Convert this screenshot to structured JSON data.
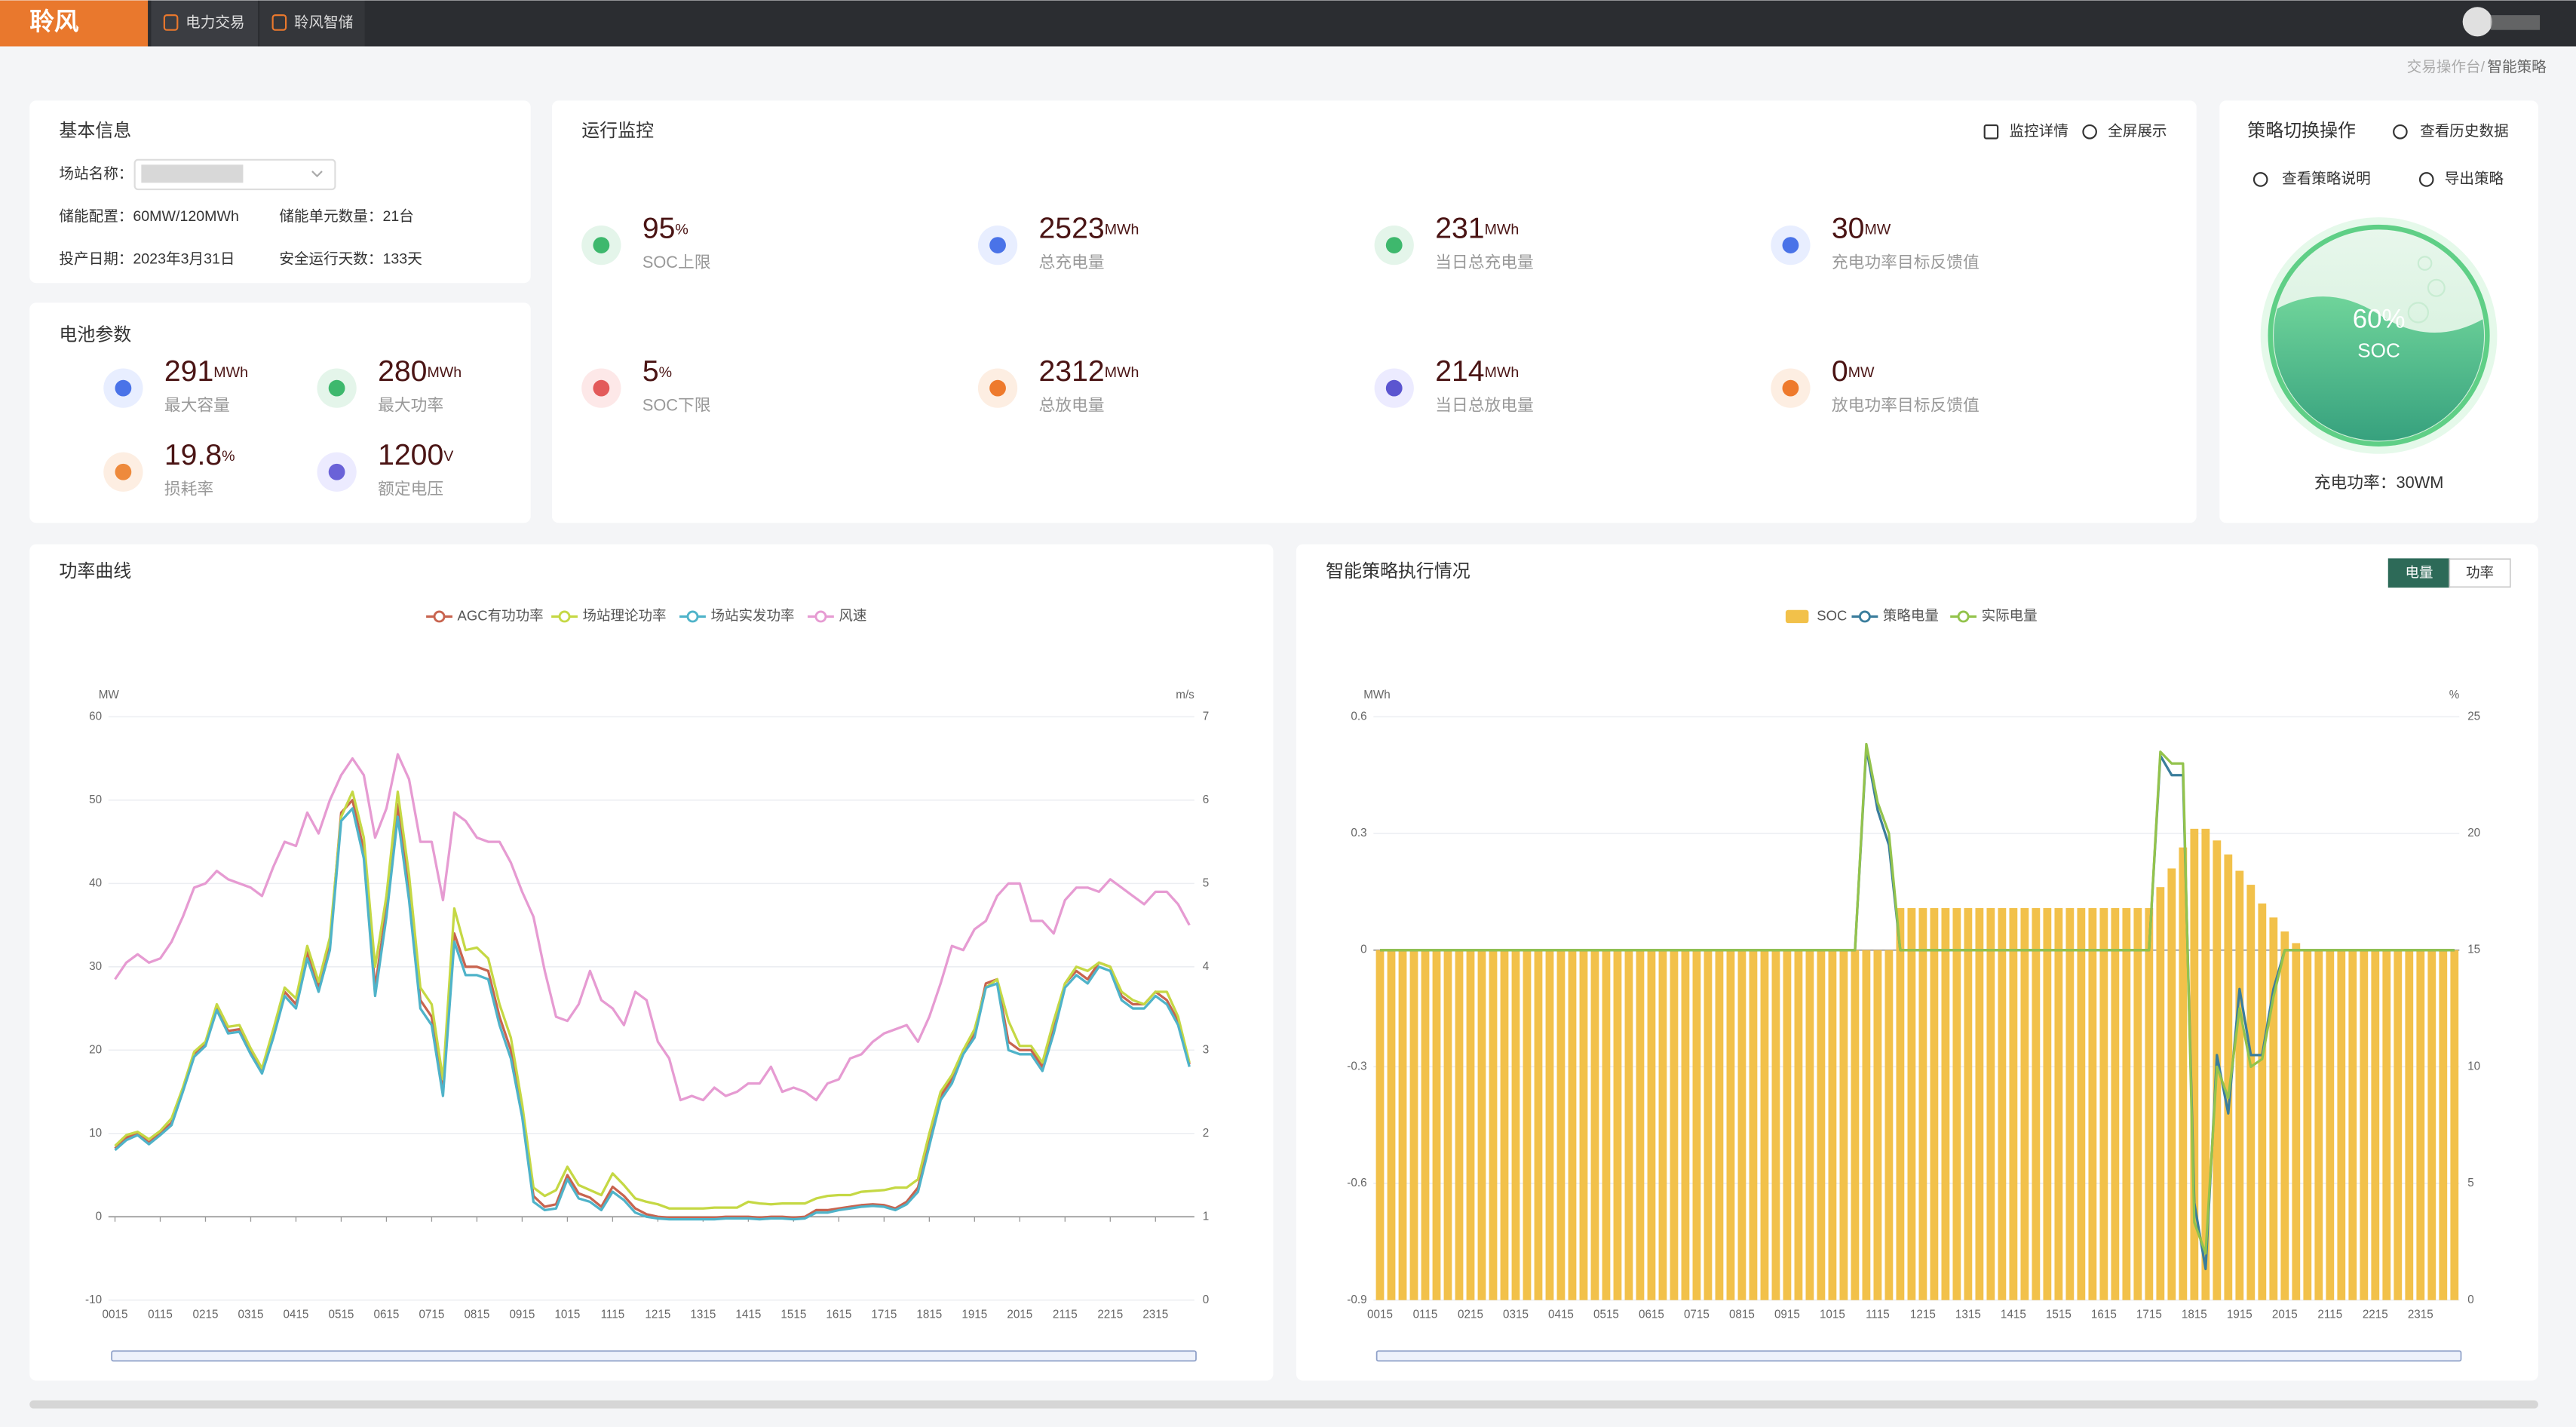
{
  "nav": {
    "logo": "聆风",
    "tabs": [
      "电力交易",
      "聆风智储"
    ]
  },
  "breadcrumb": [
    "交易操作台",
    "智能策略"
  ],
  "basic_info": {
    "title": "基本信息",
    "fields": [
      {
        "label": "场站名称："
      },
      {
        "label": "储能配置：",
        "value": "60MW/120MWh"
      },
      {
        "label": "储能单元数量：",
        "value": "21台"
      },
      {
        "label": "投产日期：",
        "value": "2023年3月31日"
      },
      {
        "label": "安全运行天数：",
        "value": "133天"
      }
    ]
  },
  "battery": {
    "title": "电池参数",
    "items": [
      {
        "value": 291,
        "unit": "MWh",
        "label": "最大容量"
      },
      {
        "value": 280,
        "unit": "MWh",
        "label": "最大功率"
      },
      {
        "value": 19.8,
        "unit": "%",
        "label": "损耗率"
      },
      {
        "value": 1200,
        "unit": "V",
        "label": "额定电压"
      }
    ]
  },
  "monitor": {
    "title": "运行监控",
    "actions": [
      "监控详情",
      "全屏展示"
    ],
    "items": [
      {
        "value": 95,
        "unit": "%",
        "label": "SOC上限"
      },
      {
        "value": 2523,
        "unit": "MWh",
        "label": "总充电量"
      },
      {
        "value": 231,
        "unit": "MWh",
        "label": "当日总充电量"
      },
      {
        "value": 30,
        "unit": "MW",
        "label": "充电功率目标反馈值"
      },
      {
        "value": 5,
        "unit": "%",
        "label": "SOC下限"
      },
      {
        "value": 2312,
        "unit": "MWh",
        "label": "总放电量"
      },
      {
        "value": 214,
        "unit": "MWh",
        "label": "当日总放电量"
      },
      {
        "value": 0,
        "unit": "MW",
        "label": "放电功率目标反馈值"
      }
    ]
  },
  "strategy": {
    "title": "策略切换操作",
    "actions": [
      "查看历史数据",
      "查看策略说明",
      "导出策略"
    ],
    "soc": 60,
    "soc_unit": "%",
    "soc_label": "SOC",
    "power": "充电功率：30WM"
  },
  "chart_data": [
    {
      "type": "line",
      "title": "功率曲线",
      "y_unit": "MW",
      "y2_unit": "m/s",
      "categories": [
        "0015",
        null,
        null,
        null,
        "0115",
        null,
        null,
        null,
        "0215",
        null,
        null,
        null,
        "0315",
        null,
        null,
        null,
        "0415",
        null,
        null,
        null,
        "0515",
        null,
        null,
        null,
        "0615",
        null,
        null,
        null,
        "0715",
        null,
        null,
        null,
        "0815",
        null,
        null,
        null,
        "0915",
        null,
        null,
        null,
        "1015",
        null,
        null,
        null,
        "1115",
        null,
        null,
        null,
        "1215",
        null,
        null,
        null,
        "1315",
        null,
        null,
        null,
        "1415",
        null,
        null,
        null,
        "1515",
        null,
        null,
        null,
        "1615",
        null,
        null,
        null,
        "1715",
        null,
        null,
        null,
        "1815",
        null,
        null,
        null,
        "1915",
        null,
        null,
        null,
        "2015",
        null,
        null,
        null,
        "2115",
        null,
        null,
        null,
        "2215",
        null,
        null,
        null,
        "2315",
        null,
        null,
        null
      ],
      "ylim": [
        -10,
        60
      ],
      "yticks": [
        -10,
        0,
        10,
        20,
        30,
        40,
        50,
        60
      ],
      "y2lim": [
        0,
        7
      ],
      "y2ticks": [
        0,
        1,
        2,
        3,
        4,
        5,
        6,
        7
      ],
      "grid": true,
      "series": [
        {
          "name": "AGC有功功率",
          "color": "#c8644f",
          "values": [
            8.2,
            9.5,
            10,
            8.9,
            10,
            11.3,
            15.2,
            19.5,
            20.8,
            25,
            22.3,
            22.5,
            19.8,
            17.5,
            22,
            27,
            25.5,
            31.8,
            27.5,
            32.8,
            48.5,
            50,
            44,
            27.5,
            37,
            49.5,
            39,
            26,
            24,
            15,
            34,
            30,
            30,
            29.5,
            24,
            20,
            12.5,
            2.5,
            1.2,
            1.5,
            5,
            2.8,
            2.3,
            1.2,
            3.6,
            2.5,
            1,
            0.3,
            0,
            -0.1,
            -0.1,
            -0.1,
            -0.1,
            -0.1,
            0,
            0,
            0,
            -0.1,
            0,
            0,
            -0.1,
            0,
            0.8,
            0.8,
            1,
            1.2,
            1.4,
            1.5,
            1.4,
            1,
            1.8,
            3.5,
            9,
            14.5,
            16.5,
            20,
            22,
            28,
            28.5,
            21,
            20,
            20,
            18,
            22.5,
            28,
            29.5,
            28.5,
            30.5,
            30,
            26.5,
            25.5,
            25.5,
            27,
            26,
            23.5,
            18.3
          ]
        },
        {
          "name": "场站理论功率",
          "color": "#c5d844",
          "values": [
            8.5,
            9.8,
            10.2,
            9.3,
            10.3,
            11.8,
            15.5,
            19.8,
            21,
            25.5,
            22.8,
            23,
            20.2,
            17.8,
            22.5,
            27.5,
            26.2,
            32.5,
            28.2,
            33.5,
            48,
            51,
            45.5,
            30,
            38.5,
            51,
            41,
            27.5,
            25.5,
            16.5,
            37,
            32,
            32.3,
            31,
            25.5,
            21.5,
            13.5,
            3.5,
            2.5,
            3.2,
            6,
            3.8,
            3.2,
            2.6,
            5.2,
            3.8,
            2.2,
            1.8,
            1.5,
            1,
            1,
            1,
            1,
            1.1,
            1.1,
            1.1,
            1.8,
            1.6,
            1.5,
            1.6,
            1.6,
            1.6,
            2.2,
            2.5,
            2.6,
            2.6,
            3,
            3.1,
            3.2,
            3.5,
            3.5,
            4.5,
            10,
            15,
            17,
            20,
            22.5,
            27.5,
            28.5,
            23.5,
            20.5,
            20.5,
            18.5,
            23.5,
            28,
            30,
            29.5,
            30.5,
            30,
            27,
            26,
            25.5,
            27,
            27,
            24,
            18.5
          ]
        },
        {
          "name": "场站实发功率",
          "color": "#4fb3c9",
          "values": [
            8,
            9.2,
            9.8,
            8.7,
            9.8,
            11,
            15,
            19.2,
            20.5,
            24.8,
            22,
            22.2,
            19.5,
            17.2,
            21.5,
            26.5,
            25,
            31,
            27,
            32,
            47.5,
            49,
            43,
            26.5,
            36,
            48,
            38,
            25,
            23,
            14.5,
            33,
            29,
            29,
            28.5,
            23,
            19,
            12,
            1.8,
            0.8,
            1,
            4.5,
            2.2,
            1.8,
            0.8,
            3,
            2,
            0.5,
            0,
            -0.2,
            -0.3,
            -0.3,
            -0.3,
            -0.3,
            -0.3,
            -0.2,
            -0.2,
            -0.2,
            -0.3,
            -0.2,
            -0.2,
            -0.3,
            -0.2,
            0.5,
            0.5,
            0.8,
            1,
            1.2,
            1.3,
            1.2,
            0.8,
            1.5,
            3,
            8.5,
            14,
            16,
            19.5,
            21.5,
            27.5,
            28,
            20,
            19.5,
            19.5,
            17.5,
            22,
            27.5,
            29,
            28,
            30,
            29.5,
            26,
            25,
            25,
            26.5,
            25.5,
            23,
            18
          ]
        },
        {
          "name": "风速",
          "color": "#e69bd2",
          "axis": "y2",
          "values": [
            3.85,
            4.05,
            4.15,
            4.05,
            4.1,
            4.3,
            4.6,
            4.95,
            5.0,
            5.15,
            5.05,
            5.0,
            4.95,
            4.85,
            5.2,
            5.5,
            5.45,
            5.85,
            5.6,
            6.0,
            6.3,
            6.5,
            6.3,
            5.55,
            5.9,
            6.55,
            6.25,
            5.5,
            5.5,
            4.8,
            5.85,
            5.75,
            5.55,
            5.5,
            5.5,
            5.25,
            4.9,
            4.6,
            3.95,
            3.4,
            3.35,
            3.55,
            3.95,
            3.6,
            3.5,
            3.3,
            3.7,
            3.6,
            3.1,
            2.9,
            2.4,
            2.45,
            2.4,
            2.55,
            2.45,
            2.5,
            2.6,
            2.6,
            2.8,
            2.5,
            2.55,
            2.5,
            2.4,
            2.6,
            2.65,
            2.9,
            2.95,
            3.1,
            3.2,
            3.25,
            3.3,
            3.1,
            3.4,
            3.8,
            4.25,
            4.2,
            4.45,
            4.55,
            4.85,
            5.0,
            5.0,
            4.55,
            4.55,
            4.4,
            4.8,
            4.95,
            4.95,
            4.9,
            5.05,
            4.95,
            4.85,
            4.75,
            4.9,
            4.9,
            4.75,
            4.5
          ]
        }
      ]
    },
    {
      "type": "bar",
      "title": "智能策略执行情况",
      "buttons": [
        "电量",
        "功率"
      ],
      "y_unit": "MWh",
      "y2_unit": "%",
      "categories": [
        "0015",
        null,
        null,
        null,
        "0115",
        null,
        null,
        null,
        "0215",
        null,
        null,
        null,
        "0315",
        null,
        null,
        null,
        "0415",
        null,
        null,
        null,
        "0515",
        null,
        null,
        null,
        "0615",
        null,
        null,
        null,
        "0715",
        null,
        null,
        null,
        "0815",
        null,
        null,
        null,
        "0915",
        null,
        null,
        null,
        "1015",
        null,
        null,
        null,
        "1115",
        null,
        null,
        null,
        "1215",
        null,
        null,
        null,
        "1315",
        null,
        null,
        null,
        "1415",
        null,
        null,
        null,
        "1515",
        null,
        null,
        null,
        "1615",
        null,
        null,
        null,
        "1715",
        null,
        null,
        null,
        "1815",
        null,
        null,
        null,
        "1915",
        null,
        null,
        null,
        "2015",
        null,
        null,
        null,
        "2115",
        null,
        null,
        null,
        "2215",
        null,
        null,
        null,
        "2315",
        null,
        null,
        null
      ],
      "ylim": [
        -0.9,
        0.6
      ],
      "yticks": [
        -0.9,
        -0.6,
        -0.3,
        0,
        0.3,
        0.6
      ],
      "y2lim": [
        0,
        25
      ],
      "y2ticks": [
        0,
        5,
        10,
        15,
        20,
        25
      ],
      "grid": true,
      "series": [
        {
          "name": "SOC",
          "color": "#f2c14a",
          "type": "bar",
          "axis": "y2",
          "values": [
            15,
            15,
            15,
            15,
            15,
            15,
            15,
            15,
            15,
            15,
            15,
            15,
            15,
            15,
            15,
            15,
            15,
            15,
            15,
            15,
            15,
            15,
            15,
            15,
            15,
            15,
            15,
            15,
            15,
            15,
            15,
            15,
            15,
            15,
            15,
            15,
            15,
            15,
            15,
            15,
            15,
            15,
            15,
            15,
            15,
            15,
            16.8,
            16.8,
            16.8,
            16.8,
            16.8,
            16.8,
            16.8,
            16.8,
            16.8,
            16.8,
            16.8,
            16.8,
            16.8,
            16.8,
            16.8,
            16.8,
            16.8,
            16.8,
            16.8,
            16.8,
            16.8,
            16.8,
            16.8,
            17.7,
            18.5,
            19.4,
            20.2,
            20.2,
            19.7,
            19.1,
            18.4,
            17.8,
            17,
            16.4,
            15.8,
            15.3,
            15,
            15,
            15,
            15,
            15,
            15,
            15,
            15,
            15,
            15,
            15,
            15,
            15,
            15
          ]
        },
        {
          "name": "策略电量",
          "color": "#3a7d9c",
          "type": "line",
          "values": [
            0,
            0,
            0,
            0,
            0,
            0,
            0,
            0,
            0,
            0,
            0,
            0,
            0,
            0,
            0,
            0,
            0,
            0,
            0,
            0,
            0,
            0,
            0,
            0,
            0,
            0,
            0,
            0,
            0,
            0,
            0,
            0,
            0,
            0,
            0,
            0,
            0,
            0,
            0,
            0,
            0,
            0,
            0,
            0.52,
            0.36,
            0.27,
            0,
            0,
            0,
            0,
            0,
            0,
            0,
            0,
            0,
            0,
            0,
            0,
            0,
            0,
            0,
            0,
            0,
            0,
            0,
            0,
            0,
            0,
            0,
            0.5,
            0.45,
            0.45,
            -0.65,
            -0.82,
            -0.27,
            -0.42,
            -0.1,
            -0.27,
            -0.27,
            -0.1,
            0,
            0,
            0,
            0,
            0,
            0,
            0,
            0,
            0,
            0,
            0,
            0,
            0,
            0,
            0,
            0
          ]
        },
        {
          "name": "实际电量",
          "color": "#93c34c",
          "type": "line",
          "values": [
            0,
            0,
            0,
            0,
            0,
            0,
            0,
            0,
            0,
            0,
            0,
            0,
            0,
            0,
            0,
            0,
            0,
            0,
            0,
            0,
            0,
            0,
            0,
            0,
            0,
            0,
            0,
            0,
            0,
            0,
            0,
            0,
            0,
            0,
            0,
            0,
            0,
            0,
            0,
            0,
            0,
            0,
            0,
            0.53,
            0.38,
            0.3,
            0,
            0,
            0,
            0,
            0,
            0,
            0,
            0,
            0,
            0,
            0,
            0,
            0,
            0,
            0,
            0,
            0,
            0,
            0,
            0,
            0,
            0,
            0,
            0.51,
            0.48,
            0.48,
            -0.7,
            -0.78,
            -0.3,
            -0.38,
            -0.15,
            -0.3,
            -0.28,
            -0.12,
            0,
            0,
            0,
            0,
            0,
            0,
            0,
            0,
            0,
            0,
            0,
            0,
            0,
            0,
            0,
            0
          ]
        }
      ]
    }
  ]
}
